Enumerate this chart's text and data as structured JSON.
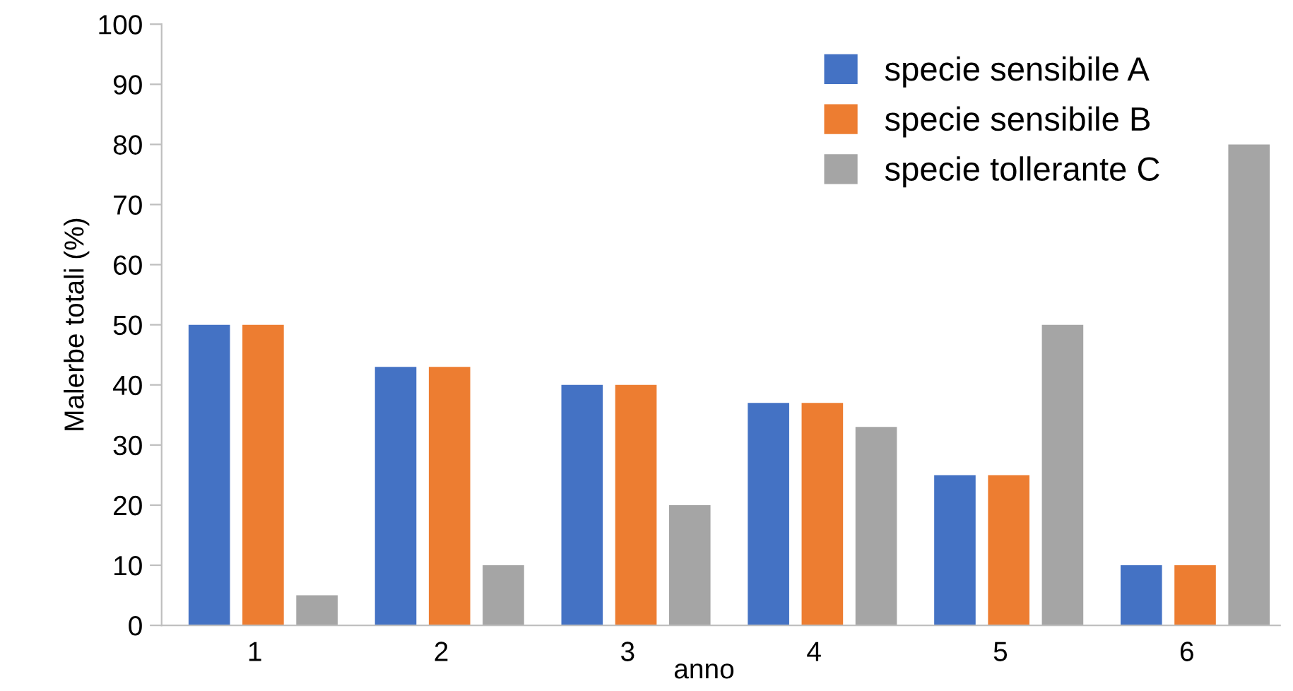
{
  "chart_data": {
    "type": "bar",
    "xlabel": "anno",
    "ylabel": "Malerbe totali (%)",
    "categories": [
      "1",
      "2",
      "3",
      "4",
      "5",
      "6"
    ],
    "series": [
      {
        "name": "specie sensibile A",
        "color": "#4472c4",
        "values": [
          50,
          43,
          40,
          37,
          25,
          10
        ]
      },
      {
        "name": "specie sensibile B",
        "color": "#ed7d31",
        "values": [
          50,
          43,
          40,
          37,
          25,
          10
        ]
      },
      {
        "name": "specie tollerante C",
        "color": "#a5a5a5",
        "values": [
          5,
          10,
          20,
          33,
          50,
          80
        ]
      }
    ],
    "ylim": [
      0,
      100
    ],
    "yticks": [
      0,
      10,
      20,
      30,
      40,
      50,
      60,
      70,
      80,
      90,
      100
    ],
    "grid": false,
    "legend": "top right"
  }
}
